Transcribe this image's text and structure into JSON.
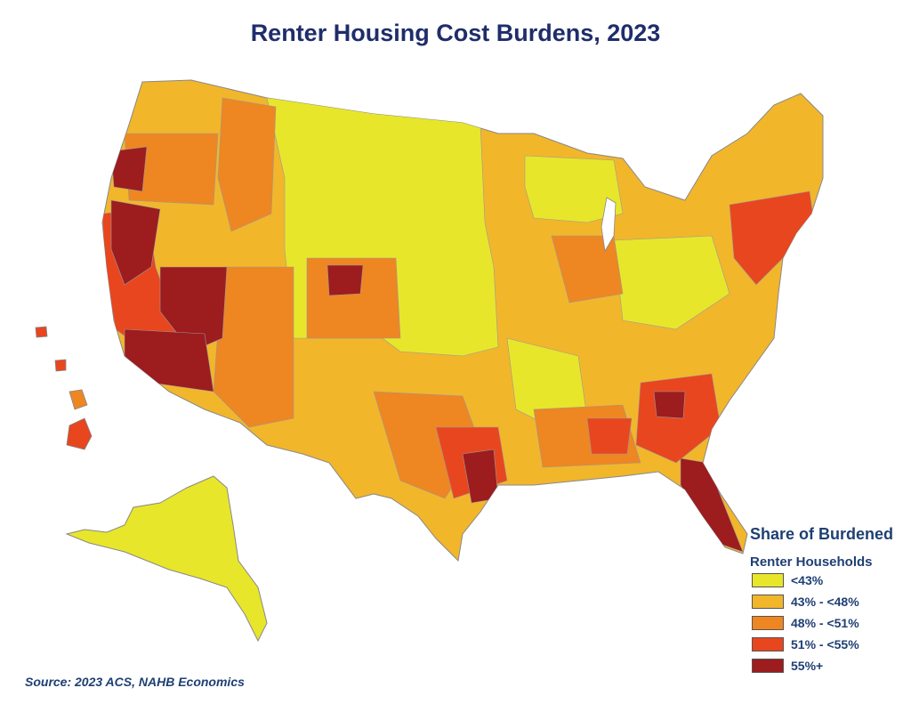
{
  "title": "Renter Housing Cost Burdens, 2023",
  "legend": {
    "title_line1": "Share of Burdened",
    "title_line2": "Renter Households",
    "items": [
      {
        "label": "<43%",
        "color": "#e8e62a"
      },
      {
        "label": "43% - <48%",
        "color": "#f2b62b"
      },
      {
        "label": "48% - <51%",
        "color": "#ee8622"
      },
      {
        "label": "51% - <55%",
        "color": "#e8461f"
      },
      {
        "label": "55%+",
        "color": "#9d1c1e"
      }
    ]
  },
  "source": "Source: 2023 ACS, NAHB Economics"
}
